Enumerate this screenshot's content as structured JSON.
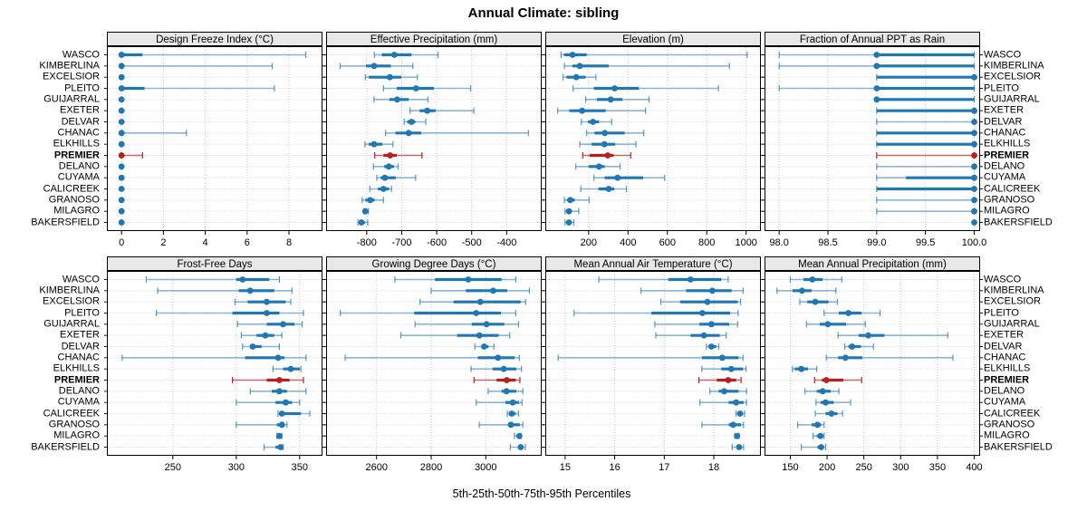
{
  "title": "Annual Climate: sibling",
  "xlabel": "5th-25th-50th-75th-95th Percentiles",
  "percentile_labels": [
    "5th",
    "25th",
    "50th",
    "75th",
    "95th"
  ],
  "highlight_station": "PREMIER",
  "colors": {
    "primary": "#1f77b4",
    "highlight": "#b62020",
    "header_bg": "#e8e8e8",
    "grid": "#c9c9c9",
    "border": "#000000"
  },
  "stations": [
    "WASCO",
    "KIMBERLINA",
    "EXCELSIOR",
    "PLEITO",
    "GUIJARRAL",
    "EXETER",
    "DELVAR",
    "CHANAC",
    "ELKHILLS",
    "PREMIER",
    "DELANO",
    "CUYAMA",
    "CALICREEK",
    "GRANOSO",
    "MILAGRO",
    "BAKERSFIELD"
  ],
  "chart_data": [
    {
      "type": "dot-interval",
      "title": "Design Freeze Index (°C)",
      "domain": [
        -0.7,
        9.6
      ],
      "ticks": [
        0,
        2,
        4,
        6,
        8
      ],
      "tick_labels": [
        "0",
        "2",
        "4",
        "6",
        "8"
      ],
      "values": [
        [
          0,
          0,
          0,
          1.0,
          8.8
        ],
        [
          0,
          0,
          0,
          0,
          7.2
        ],
        [
          0,
          0,
          0,
          0,
          0
        ],
        [
          0,
          0,
          0,
          1.1,
          7.3
        ],
        [
          0,
          0,
          0,
          0,
          0
        ],
        [
          0,
          0,
          0,
          0,
          0
        ],
        [
          0,
          0,
          0,
          0,
          0
        ],
        [
          0,
          0,
          0,
          0,
          3.1
        ],
        [
          0,
          0,
          0,
          0,
          0
        ],
        [
          0,
          0,
          0,
          0,
          1.0
        ],
        [
          0,
          0,
          0,
          0,
          0
        ],
        [
          0,
          0,
          0,
          0,
          0
        ],
        [
          0,
          0,
          0,
          0,
          0
        ],
        [
          0,
          0,
          0,
          0,
          0
        ],
        [
          0,
          0,
          0,
          0,
          0
        ],
        [
          0,
          0,
          0,
          0,
          0
        ]
      ]
    },
    {
      "type": "dot-interval",
      "title": "Effective Precipitation (mm)",
      "domain": [
        -916,
        -300
      ],
      "ticks": [
        -800,
        -700,
        -600,
        -500,
        -400
      ],
      "tick_labels": [
        "-800",
        "-700",
        "-600",
        "-500",
        "-400"
      ],
      "values": [
        [
          -778,
          -757,
          -721,
          -672,
          -596
        ],
        [
          -876,
          -802,
          -779,
          -731,
          -668
        ],
        [
          -804,
          -794,
          -734,
          -701,
          -655
        ],
        [
          -752,
          -714,
          -659,
          -608,
          -503
        ],
        [
          -779,
          -735,
          -713,
          -680,
          -625
        ],
        [
          -676,
          -649,
          -627,
          -603,
          -494
        ],
        [
          -693,
          -684,
          -672,
          -661,
          -631
        ],
        [
          -746,
          -718,
          -680,
          -644,
          -338
        ],
        [
          -805,
          -794,
          -779,
          -755,
          -725
        ],
        [
          -777,
          -752,
          -733,
          -714,
          -642
        ],
        [
          -781,
          -750,
          -737,
          -722,
          -710
        ],
        [
          -771,
          -760,
          -748,
          -717,
          -660
        ],
        [
          -791,
          -768,
          -752,
          -736,
          -729
        ],
        [
          -813,
          -804,
          -790,
          -777,
          -752
        ],
        [
          -808,
          -806,
          -804,
          -800,
          -795
        ],
        [
          -825,
          -820,
          -815,
          -805,
          -797
        ]
      ]
    },
    {
      "type": "dot-interval",
      "title": "Elevation (m)",
      "domain": [
        -20,
        1075
      ],
      "ticks": [
        200,
        400,
        600,
        800,
        1000
      ],
      "tick_labels": [
        "200",
        "400",
        "600",
        "800",
        "1000"
      ],
      "values": [
        [
          60,
          75,
          118,
          190,
          1005
        ],
        [
          77,
          118,
          155,
          302,
          915
        ],
        [
          70,
          88,
          137,
          185,
          237
        ],
        [
          121,
          227,
          332,
          455,
          859
        ],
        [
          185,
          242,
          312,
          372,
          507
        ],
        [
          43,
          102,
          167,
          287,
          489
        ],
        [
          163,
          197,
          222,
          253,
          317
        ],
        [
          190,
          230,
          282,
          383,
          480
        ],
        [
          155,
          215,
          280,
          335,
          440
        ],
        [
          170,
          205,
          297,
          327,
          414
        ],
        [
          135,
          200,
          253,
          282,
          360
        ],
        [
          227,
          282,
          347,
          477,
          586
        ],
        [
          160,
          250,
          302,
          330,
          392
        ],
        [
          77,
          90,
          107,
          130,
          203
        ],
        [
          80,
          90,
          100,
          115,
          150
        ],
        [
          80,
          88,
          100,
          110,
          125
        ]
      ]
    },
    {
      "type": "dot-interval",
      "title": "Fraction of Annual PPT as Rain",
      "domain": [
        97.85,
        100.06
      ],
      "ticks": [
        98.0,
        98.5,
        99.0,
        99.5,
        100.0
      ],
      "tick_labels": [
        "98.0",
        "98.5",
        "99.0",
        "99.5",
        "100.0"
      ],
      "values": [
        [
          98.0,
          99.0,
          99.0,
          100,
          100
        ],
        [
          98.0,
          99.0,
          99.0,
          100,
          100
        ],
        [
          99.0,
          99.0,
          100,
          100,
          100
        ],
        [
          98.0,
          99.0,
          99.0,
          100,
          100
        ],
        [
          99.0,
          99.0,
          99.0,
          100,
          100
        ],
        [
          99.0,
          99.0,
          100,
          100,
          100
        ],
        [
          99.0,
          100,
          100,
          100,
          100
        ],
        [
          99.0,
          99.0,
          100,
          100,
          100
        ],
        [
          99.0,
          99.0,
          100,
          100,
          100
        ],
        [
          99.0,
          100,
          100,
          100,
          100
        ],
        [
          99.0,
          100,
          100,
          100,
          100
        ],
        [
          99.0,
          99.3,
          100,
          100,
          100
        ],
        [
          99.0,
          99.0,
          100,
          100,
          100
        ],
        [
          99.0,
          100,
          100,
          100,
          100
        ],
        [
          99.0,
          100,
          100,
          100,
          100
        ],
        [
          100,
          100,
          100,
          100,
          100
        ]
      ]
    },
    {
      "type": "dot-interval",
      "title": "Frost-Free Days",
      "domain": [
        198,
        368
      ],
      "ticks": [
        250,
        300,
        350
      ],
      "tick_labels": [
        "250",
        "300",
        "350"
      ],
      "values": [
        [
          229,
          300,
          305,
          326,
          334
        ],
        [
          238,
          302,
          311,
          330,
          344
        ],
        [
          299,
          309,
          324,
          339,
          343
        ],
        [
          237,
          297,
          324,
          334,
          353
        ],
        [
          301,
          324,
          337,
          346,
          352
        ],
        [
          304,
          316,
          323,
          330,
          336
        ],
        [
          305,
          311,
          313,
          320,
          334
        ],
        [
          210,
          307,
          333,
          338,
          355
        ],
        [
          329,
          337,
          343,
          350,
          351
        ],
        [
          297,
          324,
          334,
          342,
          353
        ],
        [
          311,
          328,
          334,
          340,
          355
        ],
        [
          300,
          331,
          339,
          344,
          350
        ],
        [
          333,
          334,
          336,
          351,
          358
        ],
        [
          300,
          332,
          336,
          338,
          340
        ],
        [
          332,
          333,
          334,
          335,
          336
        ],
        [
          322,
          331,
          335,
          336,
          337
        ]
      ]
    },
    {
      "type": "dot-interval",
      "title": "Growing Degree Days (°C)",
      "domain": [
        2415,
        3205
      ],
      "ticks": [
        2600,
        2800,
        3000
      ],
      "tick_labels": [
        "2600",
        "2800",
        "3000"
      ],
      "values": [
        [
          2667,
          2814,
          2936,
          3058,
          3110
        ],
        [
          2800,
          2927,
          3027,
          3079,
          3160
        ],
        [
          2759,
          2882,
          2980,
          3128,
          3146
        ],
        [
          2467,
          2738,
          2965,
          3056,
          3110
        ],
        [
          2741,
          2949,
          3003,
          3068,
          3120
        ],
        [
          2689,
          2895,
          2977,
          3047,
          3088
        ],
        [
          2960,
          2985,
          2994,
          3010,
          3030
        ],
        [
          2485,
          2971,
          3045,
          3106,
          3123
        ],
        [
          2946,
          3025,
          3066,
          3112,
          3131
        ],
        [
          2957,
          3040,
          3077,
          3110,
          3125
        ],
        [
          3009,
          3058,
          3076,
          3112,
          3136
        ],
        [
          2965,
          3072,
          3099,
          3122,
          3133
        ],
        [
          3079,
          3088,
          3095,
          3110,
          3120
        ],
        [
          2976,
          3083,
          3092,
          3125,
          3136
        ],
        [
          3105,
          3118,
          3123,
          3128,
          3130
        ],
        [
          3090,
          3120,
          3128,
          3135,
          3145
        ]
      ]
    },
    {
      "type": "dot-interval",
      "title": "Mean Annual Air Temperature (°C)",
      "domain": [
        14.6,
        18.95
      ],
      "ticks": [
        15,
        16,
        17,
        18
      ],
      "tick_labels": [
        "15",
        "16",
        "17",
        "18"
      ],
      "values": [
        [
          15.68,
          17.08,
          17.53,
          18.15,
          18.29
        ],
        [
          16.53,
          17.44,
          17.97,
          18.36,
          18.59
        ],
        [
          16.93,
          17.32,
          17.87,
          18.48,
          18.54
        ],
        [
          15.18,
          16.74,
          17.77,
          18.33,
          18.49
        ],
        [
          16.81,
          17.71,
          17.95,
          18.31,
          18.48
        ],
        [
          16.83,
          17.53,
          17.8,
          18.12,
          18.25
        ],
        [
          17.85,
          17.9,
          17.95,
          18.05,
          18.1
        ],
        [
          14.86,
          17.76,
          18.17,
          18.5,
          18.59
        ],
        [
          17.76,
          18.15,
          18.35,
          18.59,
          18.65
        ],
        [
          17.7,
          18.06,
          18.29,
          18.45,
          18.55
        ],
        [
          17.92,
          18.1,
          18.21,
          18.5,
          18.66
        ],
        [
          17.72,
          18.3,
          18.45,
          18.6,
          18.66
        ],
        [
          18.45,
          18.49,
          18.53,
          18.58,
          18.62
        ],
        [
          17.76,
          18.3,
          18.39,
          18.55,
          18.6
        ],
        [
          18.42,
          18.45,
          18.47,
          18.49,
          18.51
        ],
        [
          18.37,
          18.47,
          18.51,
          18.55,
          18.6
        ]
      ]
    },
    {
      "type": "dot-interval",
      "title": "Mean Annual Precipitation (mm)",
      "domain": [
        115,
        408
      ],
      "ticks": [
        150,
        200,
        250,
        300,
        350,
        400
      ],
      "tick_labels": [
        "150",
        "200",
        "250",
        "300",
        "350",
        "400"
      ],
      "values": [
        [
          150,
          168,
          180,
          194,
          220
        ],
        [
          132,
          153,
          166,
          179,
          212
        ],
        [
          163,
          173,
          184,
          202,
          214
        ],
        [
          196,
          216,
          229,
          247,
          272
        ],
        [
          172,
          190,
          201,
          226,
          252
        ],
        [
          215,
          243,
          256,
          278,
          364
        ],
        [
          224,
          229,
          234,
          246,
          263
        ],
        [
          199,
          215,
          225,
          248,
          371
        ],
        [
          153,
          156,
          165,
          174,
          186
        ],
        [
          183,
          193,
          199,
          222,
          247
        ],
        [
          170,
          186,
          194,
          205,
          216
        ],
        [
          185,
          191,
          198,
          209,
          232
        ],
        [
          184,
          198,
          206,
          214,
          221
        ],
        [
          160,
          179,
          187,
          192,
          196
        ],
        [
          181,
          186,
          191,
          193,
          196
        ],
        [
          165,
          187,
          192,
          194,
          198
        ]
      ]
    }
  ]
}
